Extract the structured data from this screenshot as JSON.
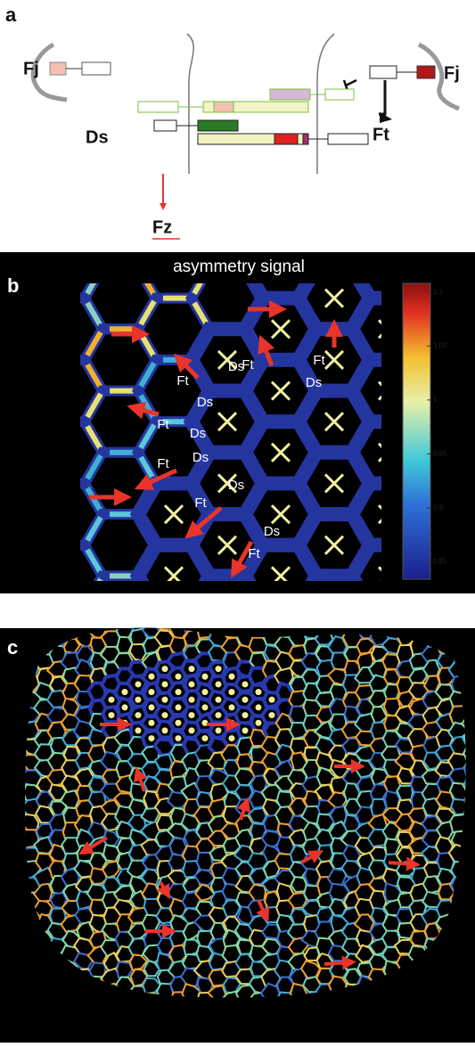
{
  "panel_a": {
    "label": "a",
    "fj_left": "Fj",
    "fj_right": "Fj",
    "ds": "Ds",
    "ft": "Ft",
    "fz": "Fz"
  },
  "panel_b": {
    "label": "b",
    "title": "asymmetry signal",
    "colorbar": {
      "lim": [
        0.834,
        1.108
      ],
      "ticks": [
        0.85,
        0.9,
        0.95,
        1,
        1.05,
        1.1
      ]
    },
    "cell_labels": [
      "Ft",
      "Ds",
      "Ds",
      "Ft",
      "Ft",
      "Ds",
      "Ft",
      "Ds",
      "Ds",
      "Ft",
      "Ds",
      "Ft",
      "Ds",
      "Ft"
    ]
  },
  "panel_c": {
    "label": "c"
  }
}
